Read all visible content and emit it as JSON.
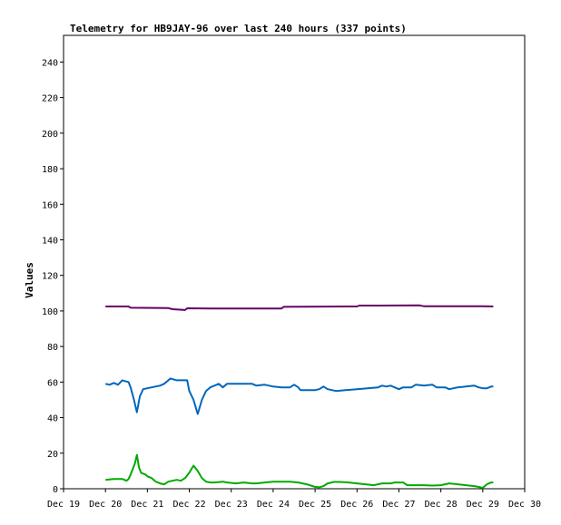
{
  "chart_data": {
    "type": "line",
    "title": "Telemetry for HB9JAY-96 over last 240 hours (337 points)",
    "ylabel": "Values",
    "xlabel": "",
    "x_ticks": [
      "Dec 19",
      "Dec 20",
      "Dec 21",
      "Dec 22",
      "Dec 23",
      "Dec 24",
      "Dec 25",
      "Dec 26",
      "Dec 27",
      "Dec 28",
      "Dec 29",
      "Dec 30"
    ],
    "y_ticks": [
      0,
      20,
      40,
      60,
      80,
      100,
      120,
      140,
      160,
      180,
      200,
      220,
      240
    ],
    "xlim": [
      0,
      11
    ],
    "ylim": [
      0,
      255
    ],
    "grid": false,
    "legend": "none",
    "series": [
      {
        "color": "#660066",
        "points": [
          [
            1.0,
            102.5
          ],
          [
            1.55,
            102.5
          ],
          [
            1.6,
            101.8
          ],
          [
            2.5,
            101.6
          ],
          [
            2.6,
            101.0
          ],
          [
            2.9,
            100.5
          ],
          [
            2.95,
            101.5
          ],
          [
            3.5,
            101.4
          ],
          [
            5.2,
            101.4
          ],
          [
            5.25,
            102.3
          ],
          [
            7.0,
            102.5
          ],
          [
            7.05,
            103.0
          ],
          [
            7.5,
            103.0
          ],
          [
            8.5,
            103.1
          ],
          [
            8.6,
            102.6
          ],
          [
            10.0,
            102.6
          ],
          [
            10.25,
            102.5
          ]
        ]
      },
      {
        "color": "#0066bb",
        "points": [
          [
            1.0,
            59
          ],
          [
            1.1,
            58.5
          ],
          [
            1.2,
            59.5
          ],
          [
            1.3,
            58.5
          ],
          [
            1.4,
            61
          ],
          [
            1.55,
            60
          ],
          [
            1.6,
            57
          ],
          [
            1.68,
            50
          ],
          [
            1.75,
            43
          ],
          [
            1.82,
            52
          ],
          [
            1.9,
            56
          ],
          [
            2.1,
            57
          ],
          [
            2.3,
            58
          ],
          [
            2.4,
            59
          ],
          [
            2.55,
            62
          ],
          [
            2.7,
            61
          ],
          [
            2.85,
            61
          ],
          [
            2.95,
            61
          ],
          [
            3.0,
            55
          ],
          [
            3.1,
            50
          ],
          [
            3.2,
            42
          ],
          [
            3.3,
            50
          ],
          [
            3.4,
            55
          ],
          [
            3.5,
            57
          ],
          [
            3.6,
            58
          ],
          [
            3.7,
            59
          ],
          [
            3.8,
            57
          ],
          [
            3.9,
            59
          ],
          [
            4.1,
            59
          ],
          [
            4.5,
            59
          ],
          [
            4.6,
            58
          ],
          [
            4.8,
            58.5
          ],
          [
            5.0,
            57.5
          ],
          [
            5.2,
            57
          ],
          [
            5.4,
            57
          ],
          [
            5.5,
            58.5
          ],
          [
            5.6,
            57
          ],
          [
            5.65,
            55.5
          ],
          [
            5.8,
            55.5
          ],
          [
            6.0,
            55.5
          ],
          [
            6.1,
            56
          ],
          [
            6.2,
            57.5
          ],
          [
            6.3,
            56
          ],
          [
            6.4,
            55.5
          ],
          [
            6.5,
            55
          ],
          [
            7.0,
            56
          ],
          [
            7.5,
            57
          ],
          [
            7.6,
            58
          ],
          [
            7.7,
            57.5
          ],
          [
            7.8,
            58
          ],
          [
            8.0,
            56
          ],
          [
            8.1,
            57
          ],
          [
            8.3,
            57
          ],
          [
            8.4,
            58.5
          ],
          [
            8.6,
            58
          ],
          [
            8.8,
            58.5
          ],
          [
            8.9,
            57
          ],
          [
            9.0,
            57
          ],
          [
            9.1,
            57
          ],
          [
            9.2,
            56
          ],
          [
            9.4,
            57
          ],
          [
            9.6,
            57.5
          ],
          [
            9.8,
            58
          ],
          [
            9.9,
            57
          ],
          [
            10.0,
            56.5
          ],
          [
            10.1,
            56.5
          ],
          [
            10.2,
            57.5
          ],
          [
            10.25,
            57.5
          ]
        ]
      },
      {
        "color": "#00aa00",
        "points": [
          [
            1.0,
            5
          ],
          [
            1.2,
            5.5
          ],
          [
            1.4,
            5.5
          ],
          [
            1.5,
            4.5
          ],
          [
            1.55,
            5.5
          ],
          [
            1.6,
            8
          ],
          [
            1.65,
            11
          ],
          [
            1.7,
            14
          ],
          [
            1.75,
            19
          ],
          [
            1.8,
            12
          ],
          [
            1.85,
            9
          ],
          [
            1.95,
            8
          ],
          [
            2.0,
            7
          ],
          [
            2.1,
            6
          ],
          [
            2.2,
            4
          ],
          [
            2.3,
            3
          ],
          [
            2.4,
            2.5
          ],
          [
            2.5,
            4
          ],
          [
            2.7,
            5
          ],
          [
            2.8,
            4.5
          ],
          [
            2.9,
            6
          ],
          [
            3.0,
            9
          ],
          [
            3.1,
            13
          ],
          [
            3.2,
            10
          ],
          [
            3.3,
            6
          ],
          [
            3.4,
            4
          ],
          [
            3.5,
            3.5
          ],
          [
            3.6,
            3.5
          ],
          [
            3.8,
            4
          ],
          [
            3.9,
            3.5
          ],
          [
            4.1,
            3
          ],
          [
            4.3,
            3.5
          ],
          [
            4.5,
            3
          ],
          [
            4.6,
            3
          ],
          [
            4.8,
            3.5
          ],
          [
            5.0,
            4
          ],
          [
            5.4,
            4
          ],
          [
            5.6,
            3.5
          ],
          [
            5.8,
            2.5
          ],
          [
            6.0,
            1
          ],
          [
            6.1,
            0.8
          ],
          [
            6.2,
            1.5
          ],
          [
            6.3,
            3
          ],
          [
            6.45,
            3.8
          ],
          [
            6.6,
            3.8
          ],
          [
            6.8,
            3.5
          ],
          [
            7.0,
            3
          ],
          [
            7.2,
            2.5
          ],
          [
            7.4,
            2
          ],
          [
            7.6,
            3
          ],
          [
            7.8,
            3
          ],
          [
            7.9,
            3.5
          ],
          [
            8.1,
            3.5
          ],
          [
            8.2,
            2
          ],
          [
            8.4,
            2
          ],
          [
            8.6,
            2
          ],
          [
            8.8,
            1.8
          ],
          [
            9.0,
            2
          ],
          [
            9.2,
            3
          ],
          [
            9.4,
            2.5
          ],
          [
            9.6,
            2
          ],
          [
            9.8,
            1.5
          ],
          [
            9.9,
            1
          ],
          [
            10.0,
            0.5
          ],
          [
            10.1,
            2.5
          ],
          [
            10.2,
            3.5
          ],
          [
            10.25,
            3.5
          ]
        ]
      }
    ]
  }
}
